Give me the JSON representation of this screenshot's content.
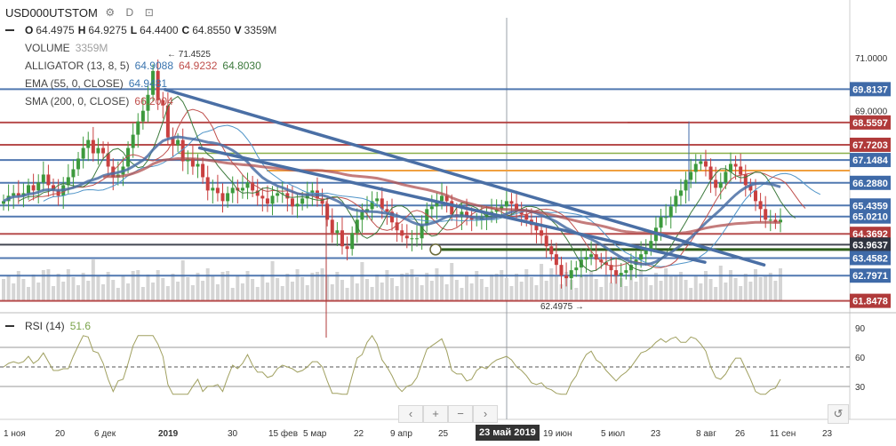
{
  "header": {
    "symbol": "USD000UTSTOM",
    "gear_icon": "gear-icon",
    "interval": "D",
    "snapshot_icon": "snapshot-icon",
    "ohlc": {
      "o_label": "O",
      "o": "64.4975",
      "h_label": "H",
      "h": "64.9275",
      "l_label": "L",
      "l": "64.4400",
      "c_label": "C",
      "c": "64.8550",
      "v_label": "V",
      "v": "3359M"
    }
  },
  "indicators": {
    "volume": {
      "name": "VOLUME",
      "value": "3359M"
    },
    "alligator": {
      "name": "ALLIGATOR (13, 8, 5)",
      "jaw": "64.9088",
      "teeth": "64.9232",
      "lips": "64.8030"
    },
    "ema": {
      "name": "EMA (55, 0, CLOSE)",
      "value": "64.9481"
    },
    "sma": {
      "name": "SMA (200, 0, CLOSE)",
      "value": "66.2004"
    },
    "rsi": {
      "name": "RSI (14)",
      "value": "51.6"
    }
  },
  "navigation": {
    "back": "‹",
    "zoom_in": "+",
    "zoom_out": "−",
    "forward": "›",
    "reset": "↺"
  },
  "colors": {
    "blue": "#3f6aa8",
    "dark_red": "#b03a3a",
    "green": "#8ab04a",
    "orange": "#f0a040",
    "dark_green": "#2f5f1c",
    "candle_up": "#3d9a3d",
    "candle_down": "#c94040",
    "alligator_blue": "#4f94c8",
    "alligator_red": "#c0504d",
    "alligator_green": "#3d7a3d",
    "sma": "#b05050",
    "rsi": "#a0a060"
  },
  "chart_data": {
    "type": "line",
    "title": "",
    "price_axis": {
      "ticks": [
        "71.0000",
        "69.0000"
      ],
      "range": [
        61.4,
        72.5
      ]
    },
    "x_axis": {
      "ticks": [
        "1 ноя",
        "20",
        "6 дек",
        "2019",
        "30",
        "15 фев",
        "5 мар",
        "22",
        "9 апр",
        "25",
        "19 июн",
        "5 июл",
        "23",
        "8 авг",
        "26",
        "11 сен",
        "23"
      ],
      "highlight_label": "23 май 2019"
    },
    "annotations": {
      "high_marker": "71.4525",
      "low_marker": "62.4975"
    },
    "horizontal_levels": [
      {
        "label": "69.8137",
        "value": 69.8137,
        "color": "#3f6aa8"
      },
      {
        "label": "68.5597",
        "value": 68.5597,
        "color": "#b03a3a"
      },
      {
        "label": "67.7203",
        "value": 67.7203,
        "color": "#b03a3a"
      },
      {
        "label": "67.1484",
        "value": 67.1484,
        "color": "#3f6aa8"
      },
      {
        "label": "66.2880",
        "value": 66.288,
        "color": "#3f6aa8"
      },
      {
        "label": "65.4359",
        "value": 65.4359,
        "color": "#3f6aa8"
      },
      {
        "label": "65.0210",
        "value": 65.021,
        "color": "#3f6aa8"
      },
      {
        "label": "64.3692",
        "value": 64.3692,
        "color": "#b03a3a"
      },
      {
        "label": "63.9637",
        "value": 63.9637,
        "color": "#2f3440"
      },
      {
        "label": "63.4582",
        "value": 63.4582,
        "color": "#3f6aa8"
      },
      {
        "label": "62.7971",
        "value": 62.7971,
        "color": "#3f6aa8"
      },
      {
        "label": "61.8478",
        "value": 61.8478,
        "color": "#b03a3a"
      }
    ],
    "trendlines": [
      {
        "from": [
          "2019-01-01",
          69.8
        ],
        "to": [
          "2019-09-01",
          63.2
        ]
      },
      {
        "from": [
          "2019-01-15",
          67.6
        ],
        "to": [
          "2019-08-08",
          63.3
        ]
      }
    ],
    "closes": [
      65.6,
      65.8,
      65.9,
      65.8,
      65.9,
      66.2,
      66.0,
      66.3,
      66.6,
      66.2,
      66.0,
      65.8,
      66.2,
      66.5,
      66.8,
      67.2,
      67.6,
      67.9,
      67.4,
      67.6,
      67.4,
      66.9,
      66.5,
      66.6,
      66.9,
      67.6,
      68.1,
      68.6,
      69.0,
      69.6,
      70.5,
      69.4,
      69.2,
      68.0,
      67.7,
      67.9,
      67.1,
      67.2,
      66.9,
      67.0,
      66.5,
      66.0,
      66.1,
      65.9,
      65.6,
      65.9,
      66.1,
      66.0,
      66.1,
      66.3,
      66.0,
      65.8,
      65.7,
      65.5,
      65.8,
      65.9,
      65.9,
      65.7,
      65.4,
      65.5,
      65.7,
      65.9,
      66.0,
      65.7,
      65.5,
      64.9,
      64.4,
      64.5,
      63.9,
      63.8,
      64.4,
      64.9,
      65.2,
      65.3,
      65.6,
      65.7,
      65.3,
      65.2,
      64.8,
      64.5,
      64.3,
      64.2,
      64.2,
      64.2,
      64.7,
      65.3,
      65.4,
      65.6,
      65.8,
      65.6,
      65.1,
      65.0,
      65.2,
      65.0,
      64.9,
      64.9,
      65.0,
      65.1,
      65.2,
      65.3,
      65.4,
      65.6,
      65.5,
      65.2,
      65.1,
      64.9,
      64.7,
      64.5,
      64.3,
      63.9,
      63.6,
      63.2,
      62.8,
      62.7,
      63.0,
      63.1,
      63.4,
      63.5,
      63.6,
      63.4,
      63.3,
      63.2,
      63.0,
      62.8,
      62.9,
      63.0,
      63.2,
      63.4,
      63.6,
      63.8,
      64.1,
      64.6,
      65.0,
      65.0,
      65.4,
      65.8,
      66.0,
      66.4,
      66.7,
      67.0,
      67.1,
      66.9,
      66.4,
      66.1,
      66.3,
      66.7,
      67.0,
      66.9,
      66.6,
      66.2,
      66.0,
      65.6,
      65.3,
      64.9,
      64.9,
      64.8,
      64.9
    ]
  }
}
